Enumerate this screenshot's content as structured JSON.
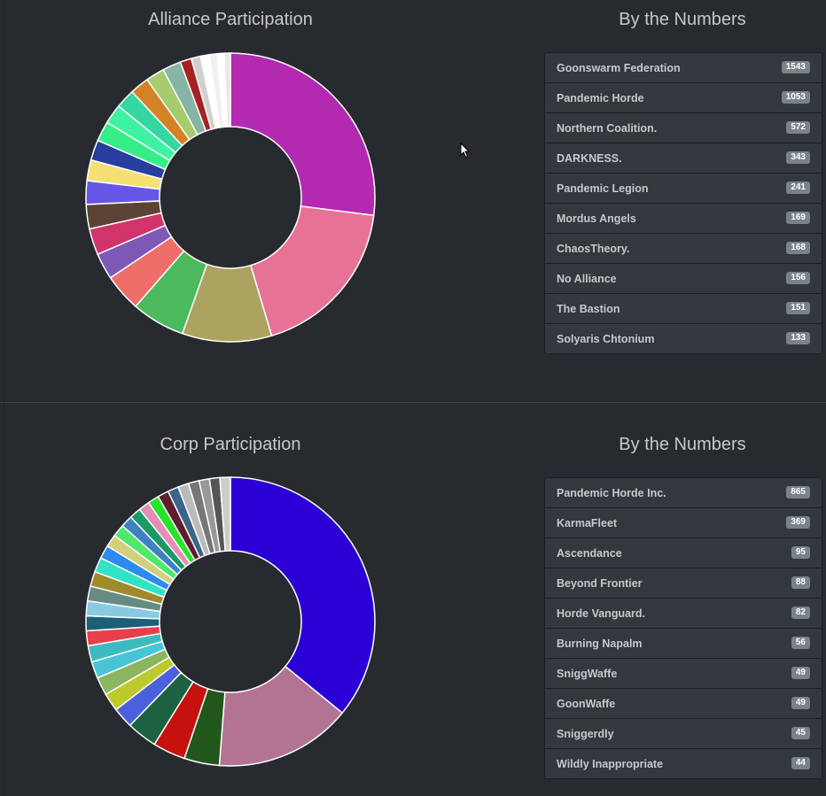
{
  "alliance": {
    "title": "Alliance Participation",
    "numbers_title": "By the Numbers",
    "items": [
      {
        "name": "Goonswarm Federation",
        "count": "1543"
      },
      {
        "name": "Pandemic Horde",
        "count": "1053"
      },
      {
        "name": "Northern Coalition.",
        "count": "572"
      },
      {
        "name": "DARKNESS.",
        "count": "343"
      },
      {
        "name": "Pandemic Legion",
        "count": "241"
      },
      {
        "name": "Mordus Angels",
        "count": "169"
      },
      {
        "name": "ChaosTheory.",
        "count": "168"
      },
      {
        "name": "No Alliance",
        "count": "156"
      },
      {
        "name": "The Bastion",
        "count": "151"
      },
      {
        "name": "Solyaris Chtonium",
        "count": "133"
      }
    ]
  },
  "corp": {
    "title": "Corp Participation",
    "numbers_title": "By the Numbers",
    "items": [
      {
        "name": "Pandemic Horde Inc.",
        "count": "865"
      },
      {
        "name": "KarmaFleet",
        "count": "369"
      },
      {
        "name": "Ascendance",
        "count": "95"
      },
      {
        "name": "Beyond Frontier",
        "count": "88"
      },
      {
        "name": "Horde Vanguard.",
        "count": "82"
      },
      {
        "name": "Burning Napalm",
        "count": "56"
      },
      {
        "name": "SniggWaffe",
        "count": "49"
      },
      {
        "name": "GoonWaffe",
        "count": "49"
      },
      {
        "name": "Sniggerdly",
        "count": "45"
      },
      {
        "name": "Wildly Inappropriate",
        "count": "44"
      }
    ]
  },
  "chart_data": [
    {
      "type": "pie",
      "title": "Alliance Participation",
      "donut": true,
      "values": [
        1543,
        1053,
        572,
        343,
        241,
        169,
        168,
        156,
        151,
        133,
        130,
        128,
        126,
        124,
        122,
        120,
        118,
        72,
        60,
        56,
        50,
        44,
        40
      ],
      "colors": [
        "#b329b0",
        "#e87295",
        "#aca360",
        "#4aba5c",
        "#ef6e6a",
        "#7e58b6",
        "#d1336b",
        "#5c4335",
        "#6656e6",
        "#f6e074",
        "#273ea0",
        "#36ee87",
        "#3ff2a2",
        "#34d6a1",
        "#d48228",
        "#a7cc6e",
        "#88b4a5",
        "#a42222",
        "#d0d0d0",
        "#ffffff",
        "#f0f0f0",
        "#ffffff",
        "#e8e8e8"
      ]
    },
    {
      "type": "pie",
      "title": "Corp Participation",
      "donut": true,
      "values": [
        865,
        369,
        95,
        88,
        82,
        56,
        49,
        49,
        45,
        44,
        40,
        40,
        40,
        40,
        40,
        40,
        36,
        34,
        33,
        32,
        31,
        30,
        30,
        30,
        29,
        29,
        29,
        28,
        28,
        28
      ],
      "colors": [
        "#2a00d6",
        "#b37494",
        "#22571c",
        "#c5120f",
        "#1c6141",
        "#4b61dc",
        "#bdca2d",
        "#8bb55f",
        "#48c4d6",
        "#3bbbc0",
        "#e8404a",
        "#1c5f77",
        "#89cae2",
        "#668c82",
        "#9f8a2c",
        "#31e2c4",
        "#2c8af0",
        "#d4cf7d",
        "#4ee86a",
        "#3e82c3",
        "#1a9a67",
        "#e58eb5",
        "#27e329",
        "#5f1d30",
        "#3a6588",
        "#bbbbbb",
        "#777777",
        "#999999",
        "#555555",
        "#cccccc"
      ]
    }
  ]
}
